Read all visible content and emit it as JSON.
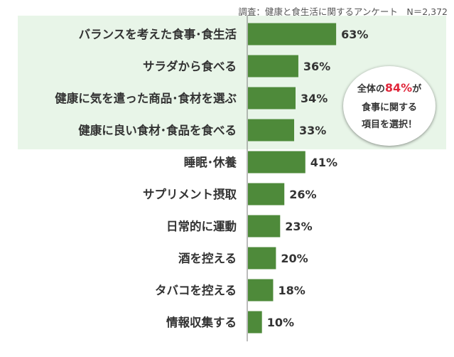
{
  "note": "調査：健康と食生活に関するアンケート　N＝2,372",
  "callout": {
    "line1_pre": "全体の",
    "line1_highlight": "84%",
    "line1_post": "が",
    "line2": "食事に関する",
    "line3": "項目を選択！",
    "highlight_color": "#e0263a"
  },
  "colors": {
    "bar": "#4e8a3a",
    "highlight_band": "#e8f5e8"
  },
  "chart_data": {
    "type": "bar",
    "orientation": "horizontal",
    "categories": [
      "バランスを考えた食事･食生活",
      "サラダから食べる",
      "健康に気を遣った商品･食材を選ぶ",
      "健康に良い食材･食品を食べる",
      "睡眠･休養",
      "サプリメント摂取",
      "日常的に運動",
      "酒を控える",
      "タバコを控える",
      "情報収集する"
    ],
    "values": [
      63,
      36,
      34,
      33,
      41,
      26,
      23,
      20,
      18,
      10
    ],
    "value_labels": [
      "63%",
      "36%",
      "34%",
      "33%",
      "41%",
      "26%",
      "23%",
      "20%",
      "18%",
      "10%"
    ],
    "highlighted_categories": [
      0,
      1,
      2,
      3
    ],
    "unit": "%"
  }
}
